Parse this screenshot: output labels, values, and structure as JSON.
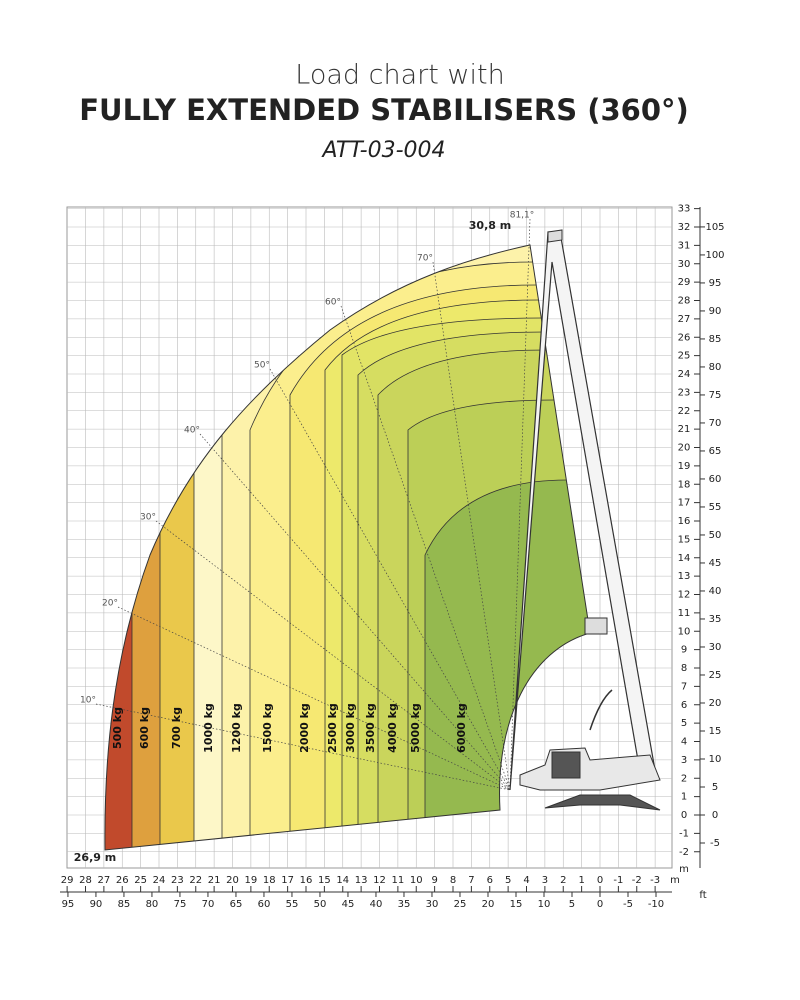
{
  "header": {
    "line1": "Load chart with",
    "line2": "FULLY EXTENDED STABILISERS (360°)",
    "line3": "ATT-03-004"
  },
  "zones": [
    "500 kg",
    "600 kg",
    "700 kg",
    "1000 kg",
    "1200 kg",
    "1500 kg",
    "2000 kg",
    "2500 kg",
    "3000 kg",
    "3500 kg",
    "4000 kg",
    "5000 kg",
    "6000 kg"
  ],
  "angles": [
    "10°",
    "20°",
    "30°",
    "40°",
    "50°",
    "60°",
    "70°",
    "81,1°"
  ],
  "max_height": "30,8 m",
  "max_reach": "26,9 m",
  "axes": {
    "bottom_m": [
      29,
      28,
      27,
      26,
      25,
      24,
      23,
      22,
      21,
      20,
      19,
      18,
      17,
      16,
      15,
      14,
      13,
      12,
      11,
      10,
      9,
      8,
      7,
      6,
      5,
      4,
      3,
      2,
      1,
      0,
      -1,
      -2,
      -3
    ],
    "bottom_ft": [
      95,
      90,
      85,
      80,
      75,
      70,
      65,
      60,
      55,
      50,
      45,
      40,
      35,
      30,
      25,
      20,
      15,
      10,
      5,
      0,
      -5,
      -10
    ],
    "right_m": [
      -2,
      -1,
      0,
      1,
      2,
      3,
      4,
      5,
      6,
      7,
      8,
      9,
      10,
      11,
      12,
      13,
      14,
      15,
      16,
      17,
      18,
      19,
      20,
      21,
      22,
      23,
      24,
      25,
      26,
      27,
      28,
      29,
      30,
      31,
      32,
      33
    ],
    "right_ft": [
      -5,
      0,
      5,
      10,
      15,
      20,
      25,
      30,
      35,
      40,
      45,
      50,
      55,
      60,
      65,
      70,
      75,
      80,
      85,
      90,
      95,
      100,
      105
    ],
    "unit_m": "m",
    "unit_ft": "ft"
  }
}
